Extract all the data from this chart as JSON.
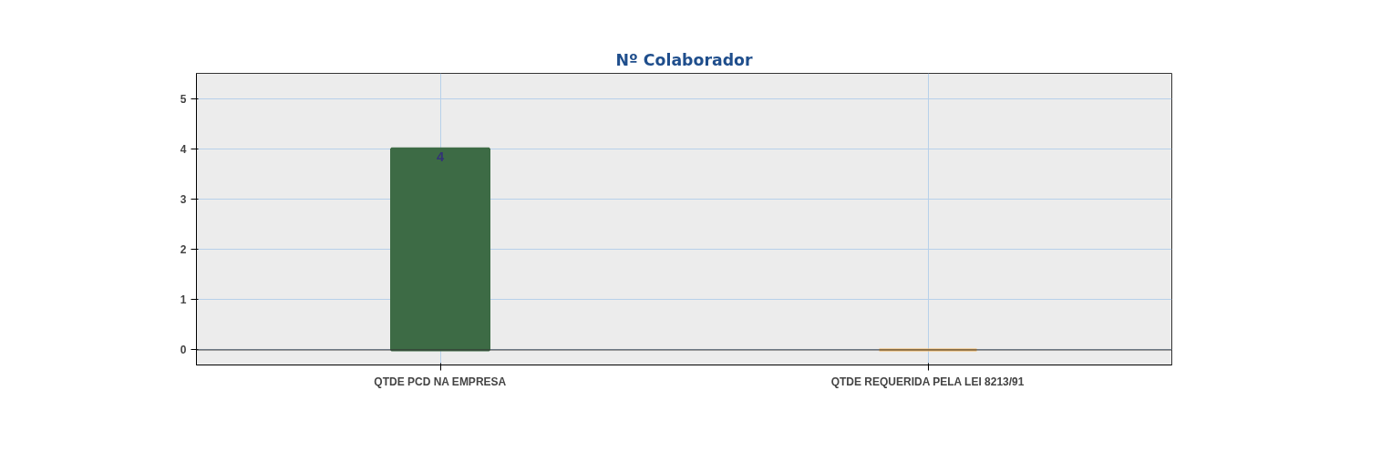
{
  "chart_data": {
    "type": "bar",
    "title": "Nº Colaborador",
    "categories": [
      "QTDE PCD NA EMPRESA",
      "QTDE REQUERIDA PELA LEI 8213/91"
    ],
    "values": [
      4,
      0
    ],
    "colors": [
      "#3d6b45",
      "#f5b860"
    ],
    "value_labels": [
      "4",
      null
    ],
    "ylim": [
      -0.3,
      5.5
    ],
    "yticks": [
      0,
      1,
      2,
      3,
      4,
      5
    ],
    "grid": true
  }
}
